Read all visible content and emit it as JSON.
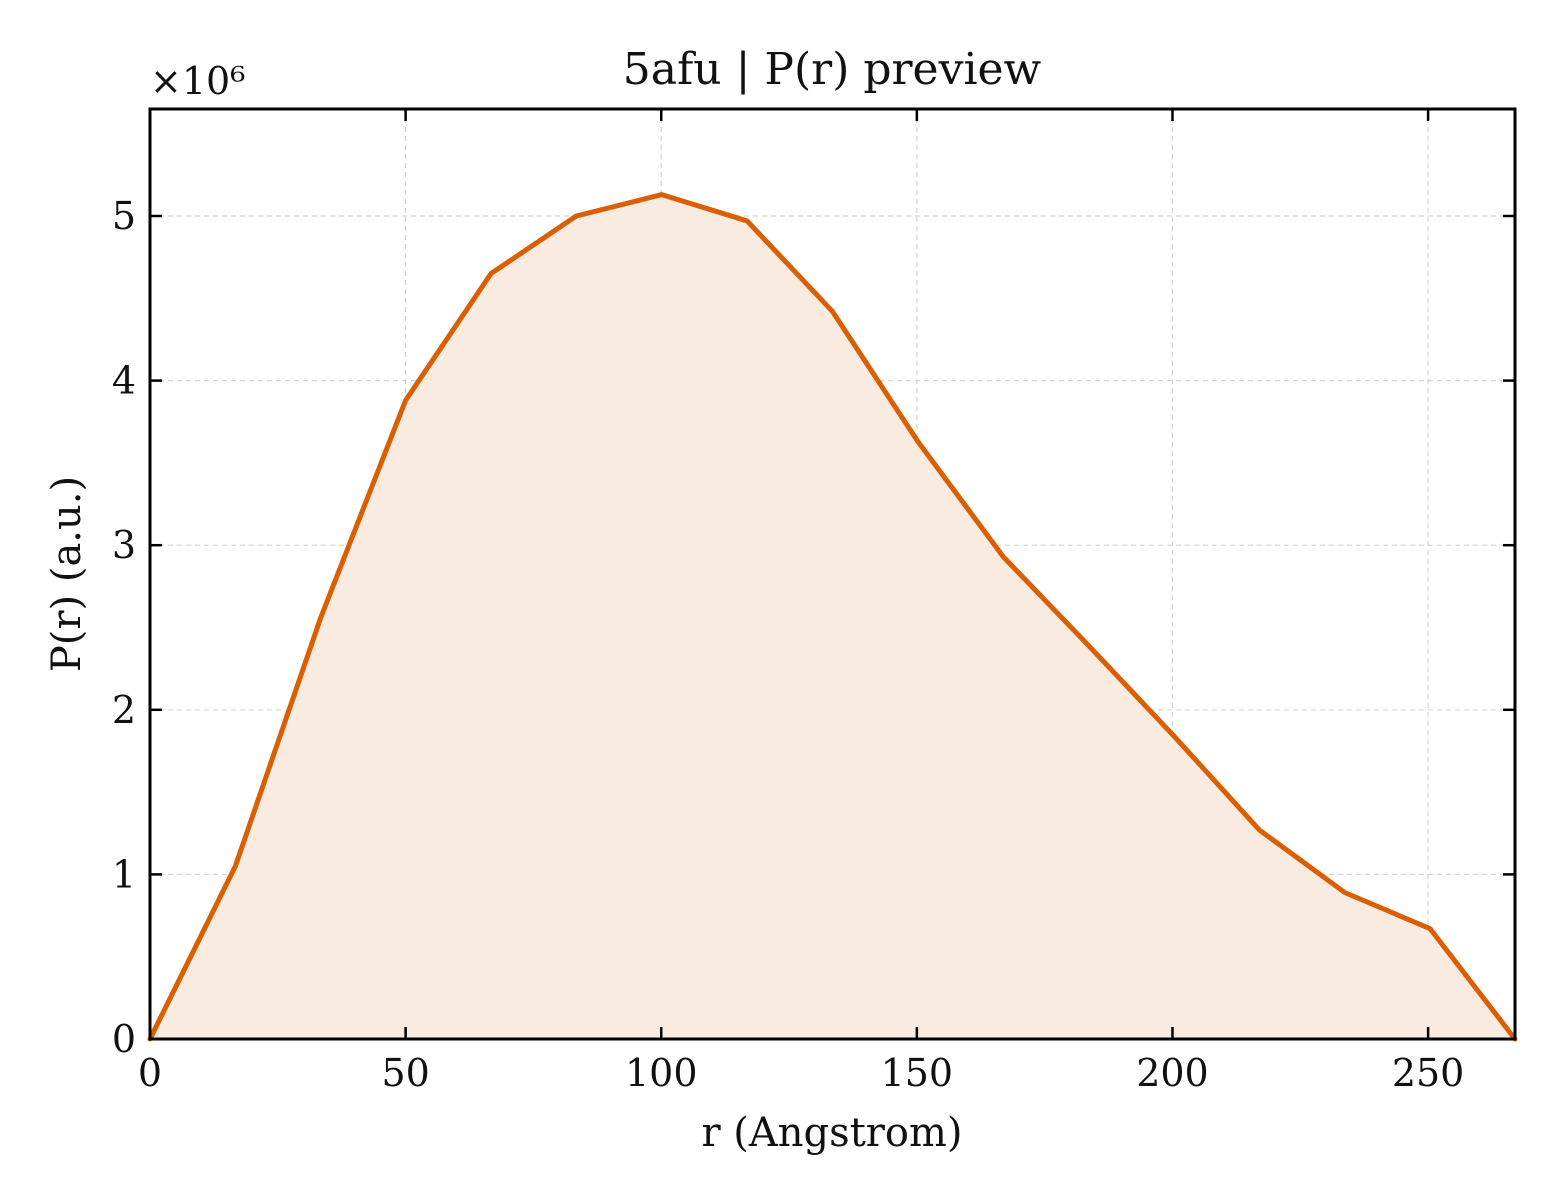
{
  "chart_data": {
    "type": "area",
    "title": "5afu | P(r) preview",
    "xlabel": "r (Angstrom)",
    "ylabel": "P(r) (a.u.)",
    "y_multiplier": "×10⁶",
    "xlim": [
      0,
      267
    ],
    "ylim": [
      0,
      5.65
    ],
    "xticks": [
      0,
      50,
      100,
      150,
      200,
      250
    ],
    "xtick_labels": [
      "0",
      "50",
      "100",
      "150",
      "200",
      "250"
    ],
    "yticks": [
      0,
      1,
      2,
      3,
      4,
      5
    ],
    "ytick_labels": [
      "0",
      "1",
      "2",
      "3",
      "4",
      "5"
    ],
    "grid": true,
    "series": [
      {
        "x": [
          0,
          16.7,
          33.4,
          50.0,
          66.7,
          83.4,
          100.1,
          116.8,
          133.5,
          150.2,
          166.9,
          183.6,
          200.3,
          217.0,
          233.7,
          250.4,
          267.0
        ],
        "y": [
          0.0,
          1.05,
          2.56,
          3.88,
          4.65,
          5.0,
          5.13,
          4.97,
          4.42,
          3.63,
          2.93,
          2.39,
          1.84,
          1.27,
          0.89,
          0.67,
          0.0
        ],
        "color": "#d95f02",
        "fill": "#f9ebe0"
      }
    ]
  }
}
